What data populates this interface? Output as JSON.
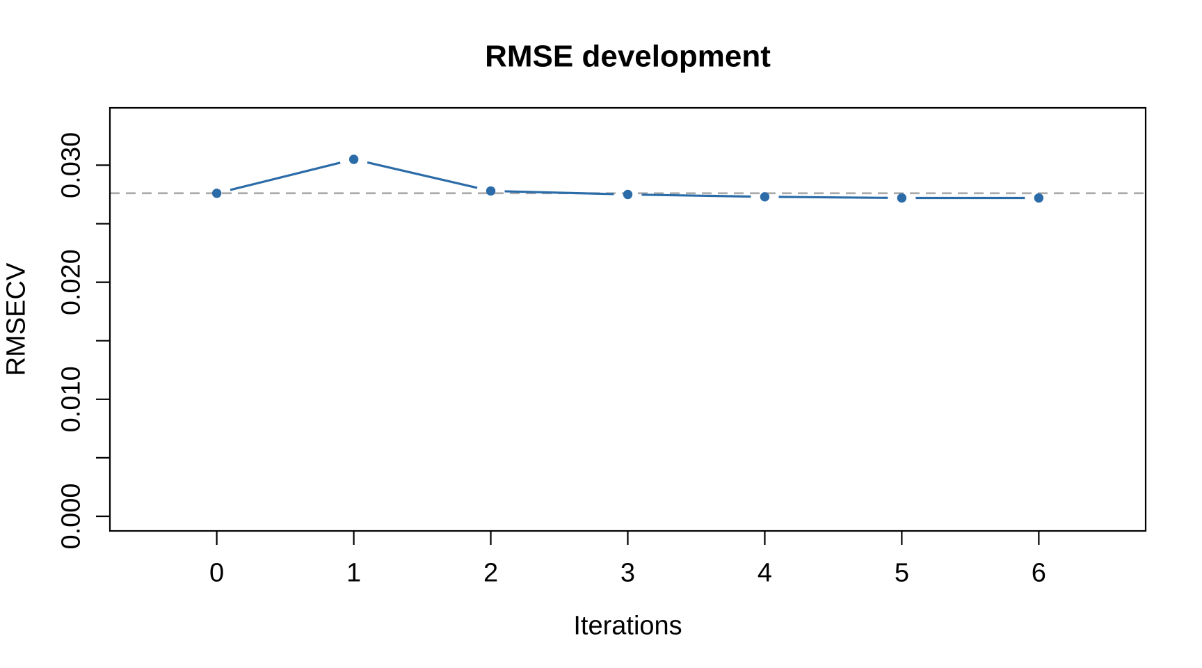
{
  "chart_data": {
    "type": "line",
    "title": "RMSE development",
    "xlabel": "Iterations",
    "ylabel": "RMSECV",
    "x": [
      0,
      1,
      2,
      3,
      4,
      5,
      6
    ],
    "series": [
      {
        "name": "RMSECV",
        "values": [
          0.0276,
          0.0305,
          0.0278,
          0.0275,
          0.0273,
          0.0272,
          0.0272
        ]
      }
    ],
    "reference_line": {
      "value": 0.0276,
      "style": "dashed",
      "color": "#AAAAAA"
    },
    "x_ticks": [
      0,
      1,
      2,
      3,
      4,
      5,
      6
    ],
    "x_tick_labels": [
      "0",
      "1",
      "2",
      "3",
      "4",
      "5",
      "6"
    ],
    "y_ticks": [
      0,
      0.005,
      0.01,
      0.015,
      0.02,
      0.025,
      0.03
    ],
    "y_labeled_ticks": [
      {
        "value": 0,
        "label": "0.000"
      },
      {
        "value": 0.01,
        "label": "0.010"
      },
      {
        "value": 0.02,
        "label": "0.020"
      },
      {
        "value": 0.03,
        "label": "0.030"
      }
    ],
    "xlim": [
      -0.78,
      6.78
    ],
    "ylim": [
      -0.00125,
      0.0349
    ],
    "grid": false,
    "legend_position": "none",
    "marker": "circle",
    "series_color": "#2B6CA8",
    "axis_color": "#000000",
    "background_color": "#FFFFFF"
  }
}
